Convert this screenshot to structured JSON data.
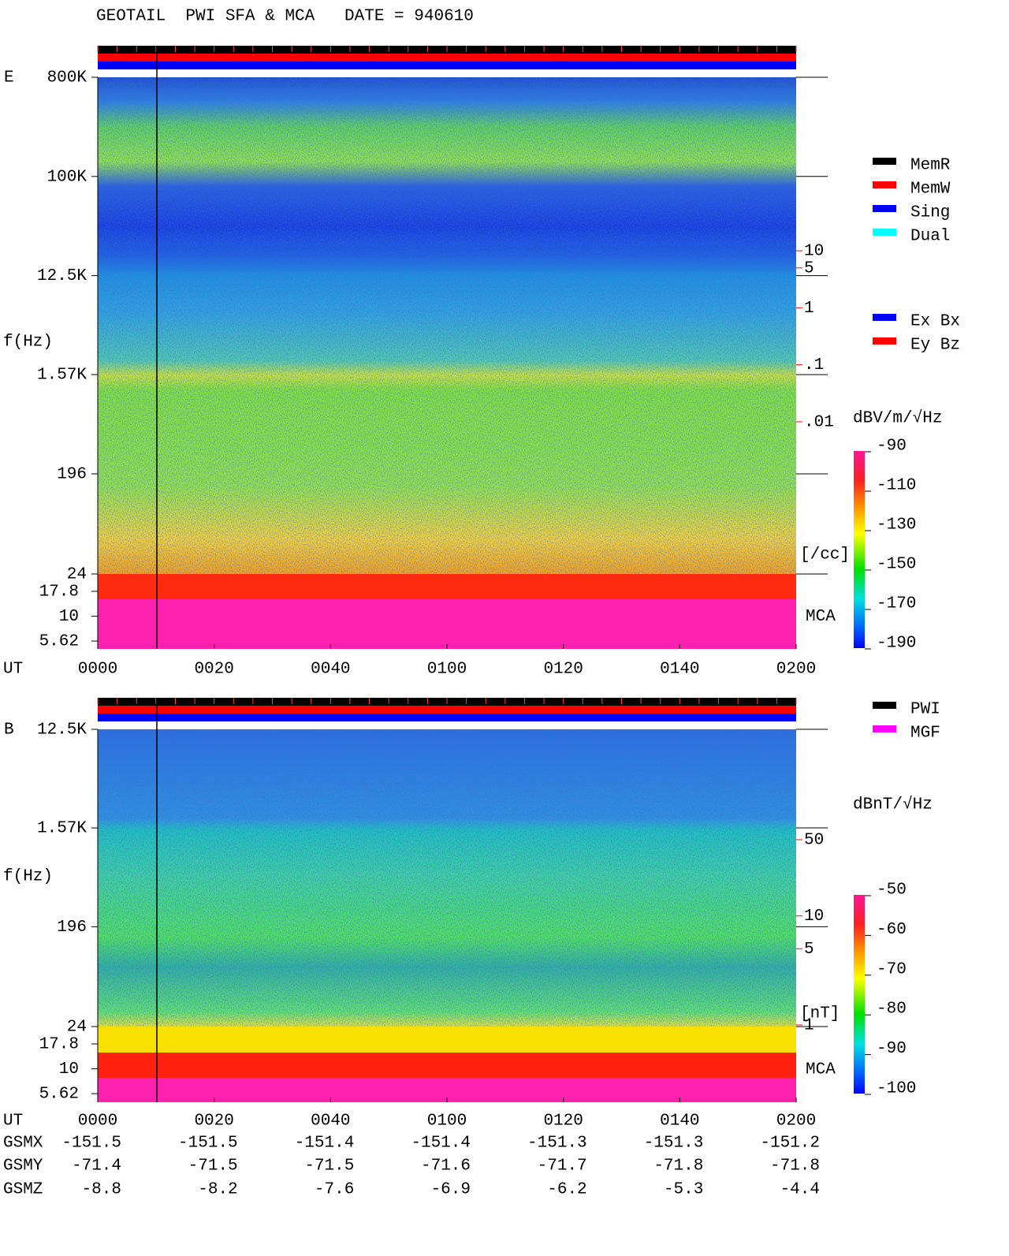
{
  "title": "GEOTAIL  PWI SFA & MCA   DATE = 940610",
  "chart_data": [
    {
      "type": "spectrogram",
      "panel_label": "E",
      "y_label": "f(Hz)",
      "x_label": "UT",
      "categories": [
        "0000",
        "0020",
        "0040",
        "0100",
        "0120",
        "0140",
        "0200"
      ],
      "log_scale": true,
      "ylim": [
        24,
        800000
      ],
      "yticks": [
        {
          "value": 800000,
          "label": "800K"
        },
        {
          "value": 100000,
          "label": "100K"
        },
        {
          "value": 12500,
          "label": "12.5K"
        },
        {
          "value": 1570,
          "label": "1.57K"
        },
        196,
        24
      ],
      "mca_label": "MCA",
      "mca_ticks": [
        17.8,
        10,
        5.62
      ],
      "colorbar": {
        "label": "dBV/m/√Hz",
        "lim": [
          -90,
          -190
        ],
        "ticks": [
          -90,
          -110,
          -130,
          -150,
          -170,
          -190
        ]
      },
      "density_axis": {
        "label": "[/cc]",
        "color": "#ff0000",
        "lim": [
          10,
          0.01
        ],
        "ticks": [
          10,
          5,
          1,
          {
            "value": 0.1,
            "label": ".1"
          },
          {
            "value": 0.01,
            "label": ".01"
          }
        ]
      },
      "legend": [
        {
          "name": "MemR",
          "color": "#000000"
        },
        {
          "name": "MemW",
          "color": "#ff0000"
        },
        {
          "name": "Sing",
          "color": "#0000ff"
        },
        {
          "name": "Dual",
          "color": "#00ffff"
        },
        {
          "name": "Ex Bx",
          "color": "#0000ff"
        },
        {
          "name": "Ey Bz",
          "color": "#ff0000"
        }
      ]
    },
    {
      "type": "spectrogram",
      "panel_label": "B",
      "y_label": "f(Hz)",
      "x_label": "UT",
      "categories": [
        "0000",
        "0020",
        "0040",
        "0100",
        "0120",
        "0140",
        "0200"
      ],
      "log_scale": true,
      "ylim": [
        24,
        12500
      ],
      "yticks": [
        {
          "value": 12500,
          "label": "12.5K"
        },
        {
          "value": 1570,
          "label": "1.57K"
        },
        196,
        24
      ],
      "mca_label": "MCA",
      "mca_ticks": [
        17.8,
        10,
        5.62
      ],
      "colorbar": {
        "label": "dBnT/√Hz",
        "lim": [
          -50,
          -100
        ],
        "ticks": [
          -50,
          -60,
          -70,
          -80,
          -90,
          -100
        ]
      },
      "density_axis": {
        "label": "[nT]",
        "color": "#ff0000",
        "lim": [
          50,
          1
        ],
        "ticks": [
          50,
          10,
          5,
          1
        ]
      },
      "legend": [
        {
          "name": "PWI",
          "color": "#000000"
        },
        {
          "name": "MGF",
          "color": "#ff00ff"
        }
      ]
    }
  ],
  "orbit": {
    "rows": [
      {
        "label": "GSMX",
        "values": [
          -151.5,
          -151.5,
          -151.4,
          -151.4,
          -151.3,
          -151.3,
          -151.2
        ]
      },
      {
        "label": "GSMY",
        "values": [
          -71.4,
          -71.5,
          -71.5,
          -71.6,
          -71.7,
          -71.8,
          -71.8
        ]
      },
      {
        "label": "GSMZ",
        "values": [
          -8.8,
          -8.2,
          -7.6,
          -6.9,
          -6.2,
          -5.3,
          -4.4
        ]
      }
    ]
  }
}
